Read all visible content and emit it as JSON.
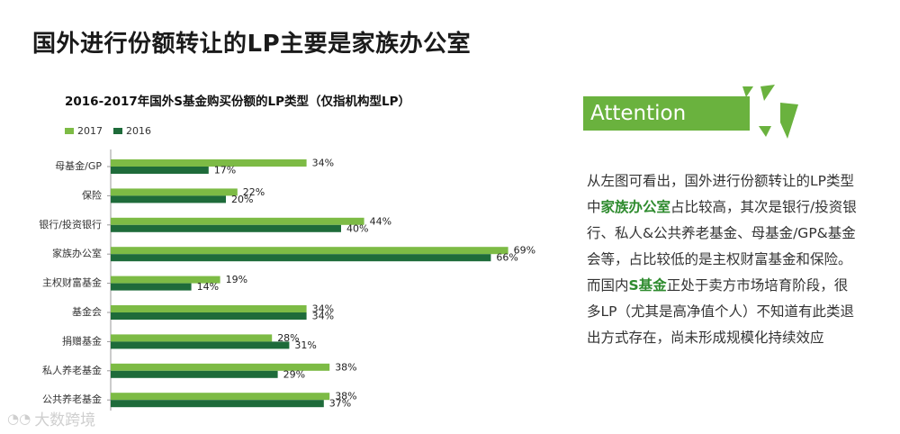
{
  "page": {
    "title": "国外进行份额转让的LP主要是家族办公室"
  },
  "chart_data": {
    "type": "bar",
    "orientation": "horizontal",
    "title": "2016-2017年国外S基金购买份额的LP类型（仅指机构型LP）",
    "categories": [
      "母基金/GP",
      "保险",
      "银行/投资银行",
      "家族办公室",
      "主权财富基金",
      "基金会",
      "捐赠基金",
      "私人养老基金",
      "公共养老基金"
    ],
    "series": [
      {
        "name": "2017",
        "color": "#7dbb45",
        "values": [
          34,
          22,
          44,
          69,
          19,
          34,
          28,
          38,
          38
        ],
        "labels": [
          "34%",
          "22%",
          "44%",
          "69%",
          "19%",
          "34%",
          "28%",
          "38%",
          "38%"
        ]
      },
      {
        "name": "2016",
        "color": "#1e6b3a",
        "values": [
          17,
          20,
          40,
          66,
          14,
          34,
          31,
          29,
          37
        ],
        "labels": [
          "17%",
          "20%",
          "40%",
          "66%",
          "14%",
          "34%",
          "31%",
          "29%",
          "37%"
        ]
      }
    ],
    "xlim": [
      0,
      80
    ],
    "grid": false,
    "legend": "top-left"
  },
  "sidebar": {
    "attention_label": "Attention",
    "note_parts": [
      {
        "text": "从左图可看出，国外进行份额转让的LP类型中",
        "hl": false
      },
      {
        "text": "家族办公室",
        "hl": true
      },
      {
        "text": "占比较高，其次是银行/投资银行、私人&公共养老基金、母基金/GP&基金会等，占比较低的是主权财富基金和保险。而国内",
        "hl": false
      },
      {
        "text": "S基金",
        "hl": true
      },
      {
        "text": "正处于卖方市场培育阶段，很多LP（尤其是高净值个人）不知道有此类退出方式存在，尚未形成规模化持续效应",
        "hl": false
      }
    ]
  },
  "watermark": {
    "text": "大数跨境"
  }
}
